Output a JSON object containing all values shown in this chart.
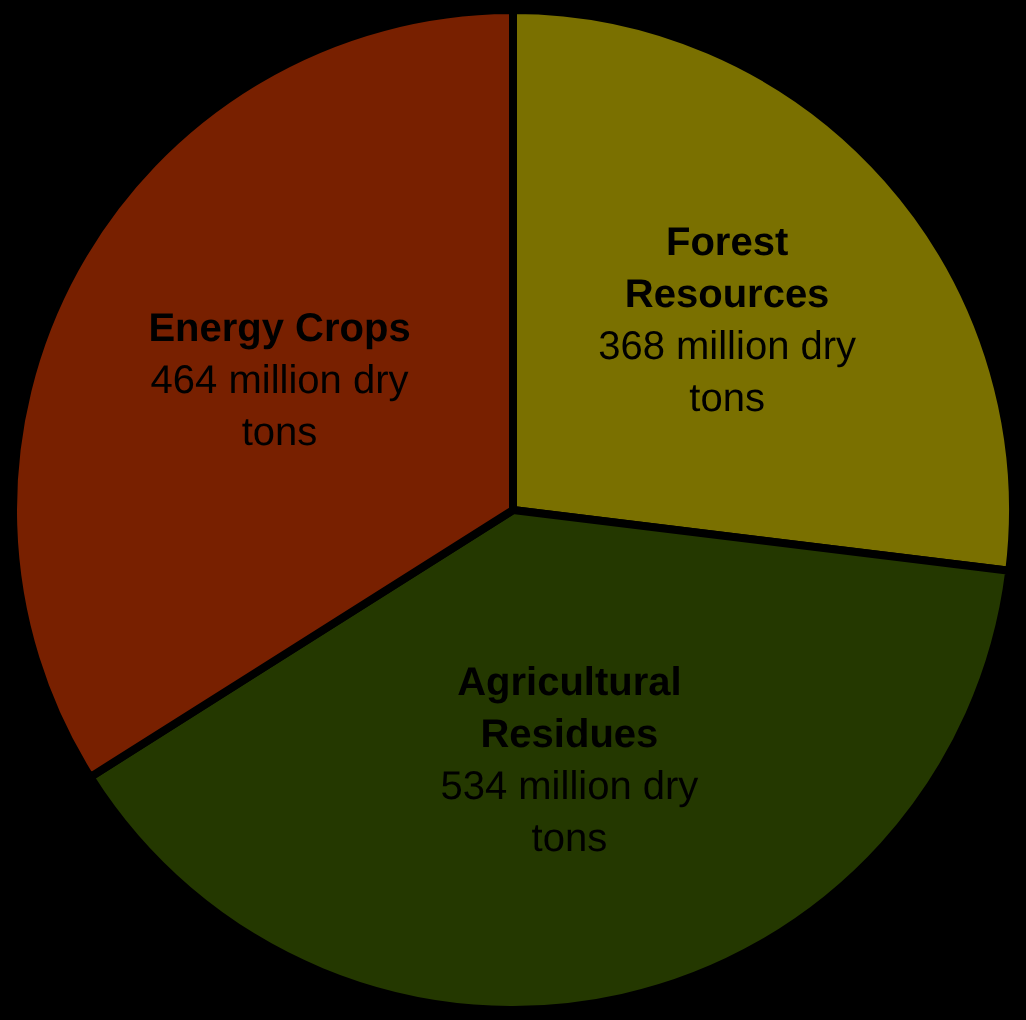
{
  "chart_data": {
    "type": "pie",
    "categories": [
      "Forest Resources",
      "Agricultural Residues",
      "Energy Crops"
    ],
    "values": [
      368,
      534,
      464
    ],
    "colors": [
      "#7a7000",
      "#243800",
      "#782000"
    ],
    "value_labels": [
      "368 million dry tons",
      "534 million dry tons",
      "464 million dry tons"
    ],
    "legend": false
  }
}
